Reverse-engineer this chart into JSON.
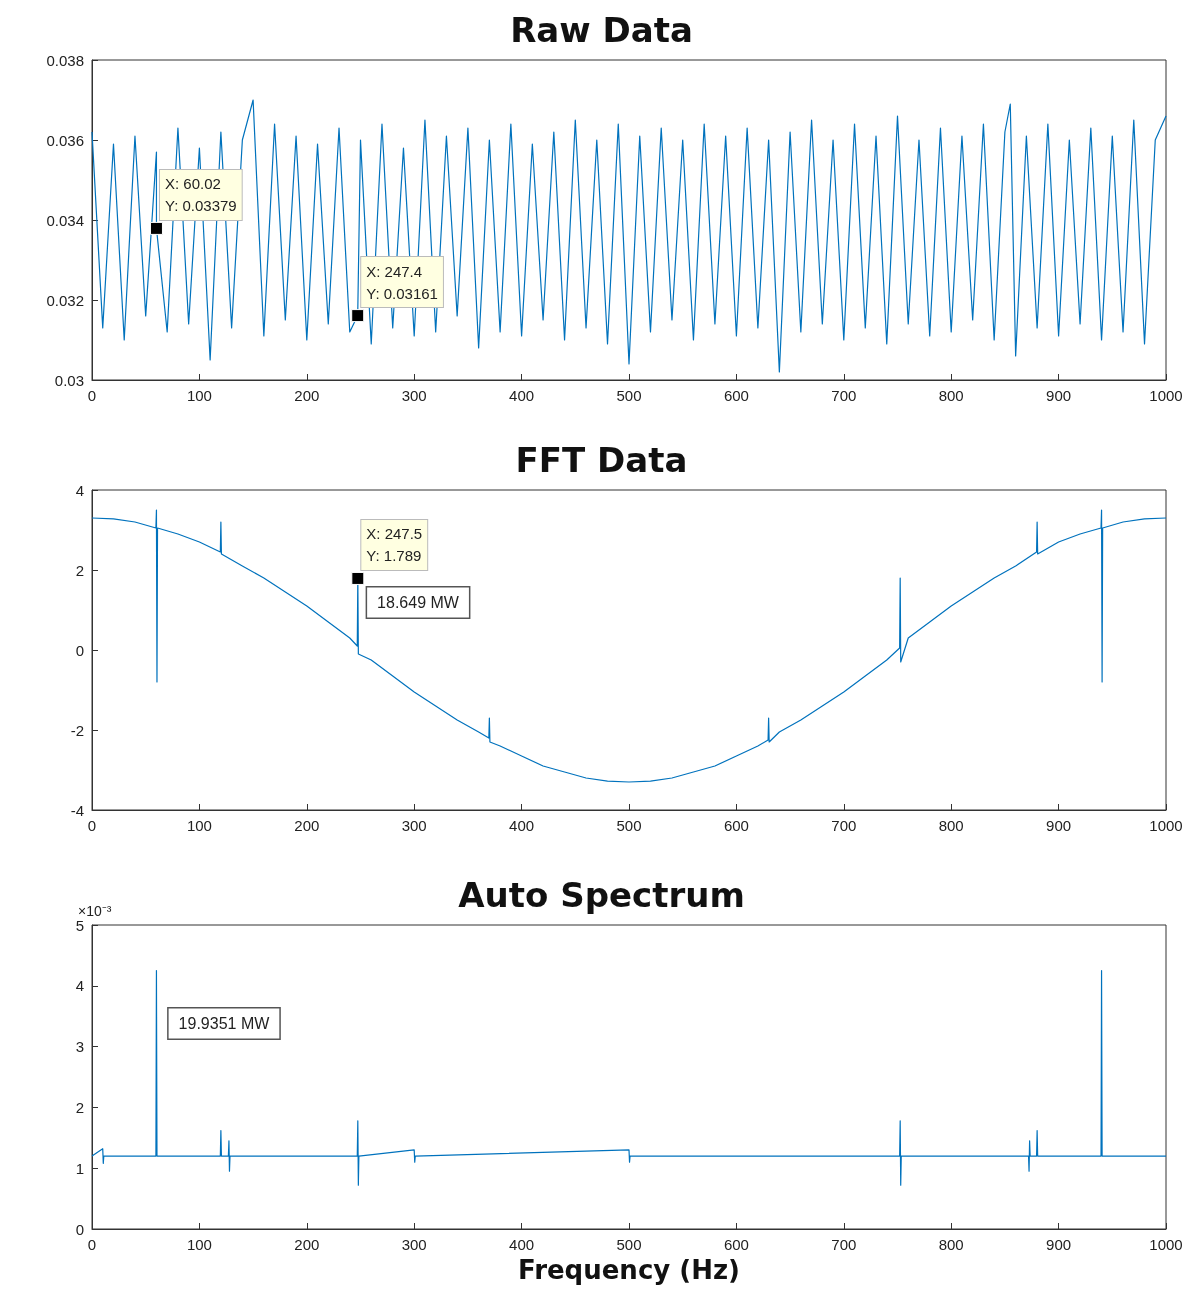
{
  "chart_data": [
    {
      "type": "line",
      "title": "Raw Data",
      "xlim": [
        0,
        1000
      ],
      "xticks": [
        0,
        100,
        200,
        300,
        400,
        500,
        600,
        700,
        800,
        900,
        1000
      ],
      "ylim": [
        0.03,
        0.038
      ],
      "yticks": [
        0.03,
        0.032,
        0.034,
        0.036,
        0.038
      ],
      "marker": "none",
      "line_style": "solid",
      "annotations": [
        {
          "text": "X: 60.02\nY: 0.03379",
          "x": 60.02,
          "y": 0.03379
        },
        {
          "text": "X: 247.4\nY: 0.03161",
          "x": 247.4,
          "y": 0.03161
        }
      ],
      "series": [
        {
          "color": "#0072bd",
          "x": [
            0,
            10,
            20,
            30,
            40,
            50,
            60,
            60.02,
            70,
            80,
            90,
            100,
            110,
            120,
            130,
            140,
            150,
            160,
            170,
            180,
            190,
            200,
            210,
            220,
            230,
            240,
            247.4,
            250,
            260,
            270,
            280,
            290,
            300,
            310,
            320,
            330,
            340,
            350,
            360,
            370,
            380,
            390,
            400,
            410,
            420,
            430,
            440,
            450,
            460,
            470,
            480,
            490,
            500,
            510,
            520,
            530,
            540,
            550,
            560,
            570,
            580,
            590,
            600,
            610,
            620,
            630,
            640,
            650,
            660,
            670,
            680,
            690,
            700,
            710,
            720,
            730,
            740,
            750,
            760,
            770,
            780,
            790,
            800,
            810,
            820,
            830,
            840,
            850,
            855,
            860,
            870,
            880,
            890,
            900,
            910,
            920,
            930,
            940,
            950,
            960,
            970,
            980,
            990,
            1000
          ],
          "values": [
            0.0362,
            0.0313,
            0.0359,
            0.031,
            0.0361,
            0.0316,
            0.0357,
            0.03379,
            0.0312,
            0.0363,
            0.0314,
            0.0358,
            0.0305,
            0.0362,
            0.0313,
            0.036,
            0.037,
            0.0311,
            0.0364,
            0.0315,
            0.0361,
            0.031,
            0.0359,
            0.0314,
            0.0363,
            0.0312,
            0.03161,
            0.036,
            0.0309,
            0.0364,
            0.0313,
            0.0358,
            0.0311,
            0.0365,
            0.0312,
            0.0361,
            0.0316,
            0.0363,
            0.0308,
            0.036,
            0.0312,
            0.0364,
            0.0311,
            0.0359,
            0.0315,
            0.0362,
            0.031,
            0.0365,
            0.0313,
            0.036,
            0.0309,
            0.0364,
            0.0304,
            0.0361,
            0.0312,
            0.0363,
            0.0315,
            0.036,
            0.031,
            0.0364,
            0.0314,
            0.0361,
            0.0311,
            0.0363,
            0.0313,
            0.036,
            0.0302,
            0.0362,
            0.0312,
            0.0365,
            0.0314,
            0.036,
            0.031,
            0.0364,
            0.0313,
            0.0361,
            0.0309,
            0.0366,
            0.0314,
            0.036,
            0.0311,
            0.0363,
            0.0312,
            0.0361,
            0.0315,
            0.0364,
            0.031,
            0.0362,
            0.0369,
            0.0306,
            0.0361,
            0.0313,
            0.0364,
            0.0311,
            0.036,
            0.0314,
            0.0363,
            0.031,
            0.0361,
            0.0312,
            0.0365,
            0.0309,
            0.036,
            0.0366
          ]
        }
      ]
    },
    {
      "type": "line",
      "title": "FFT Data",
      "xlim": [
        0,
        1000
      ],
      "xticks": [
        0,
        100,
        200,
        300,
        400,
        500,
        600,
        700,
        800,
        900,
        1000
      ],
      "ylim": [
        -4,
        4
      ],
      "yticks": [
        -4,
        -2,
        0,
        2,
        4
      ],
      "marker": "none",
      "line_style": "solid",
      "annotations": [
        {
          "text": "X: 247.5\nY: 1.789",
          "x": 247.5,
          "y": 1.789
        },
        "18.649 MW"
      ],
      "series": [
        {
          "color": "#0072bd",
          "x": [
            0,
            20,
            40,
            59.5,
            60,
            60.5,
            61,
            80,
            100,
            119.5,
            120,
            120.5,
            140,
            160,
            180,
            200,
            220,
            240,
            247,
            247.5,
            248,
            260,
            280,
            300,
            320,
            340,
            360,
            369.5,
            370,
            370.5,
            380,
            400,
            420,
            440,
            460,
            480,
            500,
            520,
            540,
            560,
            580,
            600,
            620,
            629.5,
            630,
            630.5,
            640,
            660,
            680,
            700,
            720,
            740,
            752,
            752.5,
            753,
            760,
            780,
            800,
            820,
            840,
            860,
            879.5,
            880,
            880.5,
            900,
            920,
            939.5,
            940,
            940.5,
            941,
            960,
            980,
            1000
          ],
          "values": [
            3.3,
            3.28,
            3.2,
            3.05,
            3.5,
            -0.8,
            3.05,
            2.9,
            2.7,
            2.45,
            3.2,
            2.4,
            2.1,
            1.8,
            1.45,
            1.1,
            0.7,
            0.3,
            0.1,
            1.789,
            -0.1,
            -0.25,
            -0.65,
            -1.05,
            -1.4,
            -1.75,
            -2.05,
            -2.2,
            -1.7,
            -2.3,
            -2.4,
            -2.65,
            -2.9,
            -3.05,
            -3.2,
            -3.28,
            -3.3,
            -3.28,
            -3.2,
            -3.05,
            -2.9,
            -2.65,
            -2.4,
            -2.25,
            -1.7,
            -2.3,
            -2.05,
            -1.75,
            -1.4,
            -1.05,
            -0.65,
            -0.25,
            0.05,
            1.8,
            -0.3,
            0.3,
            0.7,
            1.1,
            1.45,
            1.8,
            2.1,
            2.45,
            3.2,
            2.4,
            2.7,
            2.9,
            3.05,
            3.5,
            -0.8,
            3.05,
            3.2,
            3.28,
            3.3
          ]
        }
      ]
    },
    {
      "type": "line",
      "title": "Auto Spectrum",
      "xlabel": "Frequency (Hz)",
      "ylabel": "×10⁻³",
      "xlim": [
        0,
        1000
      ],
      "xticks": [
        0,
        100,
        200,
        300,
        400,
        500,
        600,
        700,
        800,
        900,
        1000
      ],
      "ylim": [
        0,
        5
      ],
      "yticks": [
        0,
        1,
        2,
        3,
        4,
        5
      ],
      "marker": "none",
      "line_style": "solid",
      "annotations": [
        "19.9351 MW"
      ],
      "series": [
        {
          "color": "#0072bd",
          "x": [
            0,
            10,
            10.5,
            11,
            59.5,
            60,
            60.5,
            119.5,
            120,
            120.5,
            127,
            127.5,
            128,
            128.5,
            247,
            247.5,
            248,
            248.5,
            300,
            300.5,
            301,
            500,
            500.5,
            501,
            752,
            752.5,
            753,
            753.5,
            872,
            872.5,
            873,
            873.5,
            879.5,
            880,
            880.5,
            939.5,
            940,
            940.5,
            1000
          ],
          "values": [
            1.2,
            1.32,
            1.08,
            1.2,
            1.2,
            4.25,
            1.2,
            1.2,
            1.62,
            1.2,
            1.2,
            1.45,
            0.95,
            1.2,
            1.2,
            1.78,
            0.72,
            1.2,
            1.3,
            1.1,
            1.2,
            1.3,
            1.1,
            1.2,
            1.2,
            1.78,
            0.72,
            1.2,
            1.2,
            0.95,
            1.45,
            1.2,
            1.2,
            1.62,
            1.2,
            1.2,
            4.25,
            1.2,
            1.2
          ]
        }
      ]
    }
  ]
}
